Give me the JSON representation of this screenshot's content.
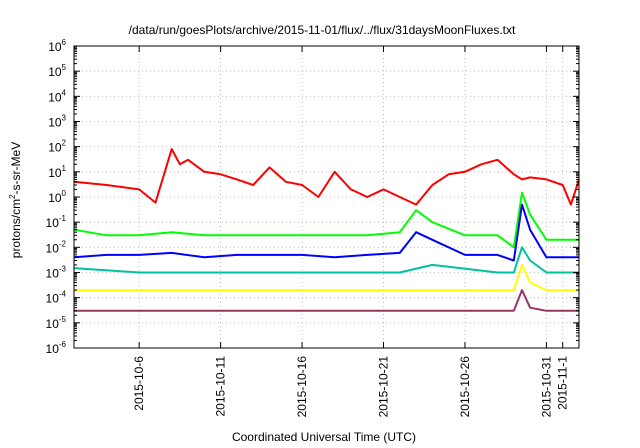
{
  "chart_data": {
    "type": "line",
    "title": "/data/run/goesPlots/archive/2015-11-01/flux/../flux/31daysMoonFluxes.txt",
    "xlabel": "Coordinated Universal Time (UTC)",
    "ylabel_base": "protons/cm",
    "ylabel_sup": "2",
    "ylabel_rest": "-s-sr-MeV",
    "yscale": "log",
    "ylim_exp": [
      -6,
      6
    ],
    "y_tick_exps": [
      -6,
      -5,
      -4,
      -3,
      -2,
      -1,
      0,
      1,
      2,
      3,
      4,
      5,
      6
    ],
    "y_tick_base": "10",
    "xlim": [
      "2015-10-02",
      "2015-11-02"
    ],
    "x_ticks": [
      "2015-10-6",
      "2015-10-11",
      "2015-10-16",
      "2015-10-21",
      "2015-10-26",
      "2015-10-31",
      "2015-11-1"
    ],
    "grid": true,
    "series": [
      {
        "color": "#ff0000",
        "x": [
          "2015-10-02",
          "2015-10-04",
          "2015-10-06",
          "2015-10-07",
          "2015-10-08",
          "2015-10-08T12",
          "2015-10-09",
          "2015-10-10",
          "2015-10-11",
          "2015-10-12",
          "2015-10-13",
          "2015-10-14",
          "2015-10-15",
          "2015-10-16",
          "2015-10-17",
          "2015-10-18",
          "2015-10-19",
          "2015-10-20",
          "2015-10-21",
          "2015-10-22",
          "2015-10-23",
          "2015-10-24",
          "2015-10-25",
          "2015-10-26",
          "2015-10-27",
          "2015-10-28",
          "2015-10-29",
          "2015-10-29T12",
          "2015-10-30",
          "2015-10-31",
          "2015-11-01",
          "2015-11-01T12",
          "2015-11-02"
        ],
        "y": [
          4,
          3,
          2,
          0.6,
          80,
          20,
          30,
          10,
          8,
          5,
          3,
          15,
          4,
          3,
          1,
          10,
          2,
          1,
          2,
          1,
          0.5,
          3,
          8,
          10,
          20,
          30,
          8,
          5,
          6,
          5,
          3,
          0.5,
          5
        ]
      },
      {
        "color": "#00ff00",
        "x": [
          "2015-10-02",
          "2015-10-04",
          "2015-10-06",
          "2015-10-08",
          "2015-10-10",
          "2015-10-12",
          "2015-10-14",
          "2015-10-16",
          "2015-10-18",
          "2015-10-20",
          "2015-10-22",
          "2015-10-23",
          "2015-10-24",
          "2015-10-26",
          "2015-10-28",
          "2015-10-29",
          "2015-10-29T12",
          "2015-10-30",
          "2015-10-31",
          "2015-11-01",
          "2015-11-02"
        ],
        "y": [
          0.05,
          0.03,
          0.03,
          0.04,
          0.03,
          0.03,
          0.03,
          0.03,
          0.03,
          0.03,
          0.04,
          0.3,
          0.1,
          0.03,
          0.03,
          0.01,
          1.5,
          0.2,
          0.02,
          0.02,
          0.02
        ]
      },
      {
        "color": "#0000ff",
        "x": [
          "2015-10-02",
          "2015-10-04",
          "2015-10-06",
          "2015-10-08",
          "2015-10-10",
          "2015-10-12",
          "2015-10-14",
          "2015-10-16",
          "2015-10-18",
          "2015-10-20",
          "2015-10-22",
          "2015-10-23",
          "2015-10-24",
          "2015-10-26",
          "2015-10-28",
          "2015-10-29",
          "2015-10-29T12",
          "2015-10-30",
          "2015-10-31",
          "2015-11-01",
          "2015-11-02"
        ],
        "y": [
          0.004,
          0.005,
          0.005,
          0.006,
          0.004,
          0.005,
          0.005,
          0.005,
          0.004,
          0.005,
          0.006,
          0.04,
          0.02,
          0.005,
          0.005,
          0.003,
          0.5,
          0.05,
          0.004,
          0.004,
          0.004
        ]
      },
      {
        "color": "#00c0a0",
        "x": [
          "2015-10-02",
          "2015-10-06",
          "2015-10-10",
          "2015-10-14",
          "2015-10-18",
          "2015-10-22",
          "2015-10-24",
          "2015-10-28",
          "2015-10-29",
          "2015-10-29T12",
          "2015-10-30",
          "2015-10-31",
          "2015-11-02"
        ],
        "y": [
          0.0015,
          0.001,
          0.001,
          0.001,
          0.001,
          0.001,
          0.002,
          0.001,
          0.001,
          0.01,
          0.003,
          0.001,
          0.001
        ]
      },
      {
        "color": "#ffff00",
        "x": [
          "2015-10-02",
          "2015-10-06",
          "2015-10-10",
          "2015-10-14",
          "2015-10-18",
          "2015-10-22",
          "2015-10-26",
          "2015-10-29",
          "2015-10-29T12",
          "2015-10-30",
          "2015-10-31",
          "2015-11-02"
        ],
        "y": [
          0.0002,
          0.0002,
          0.0002,
          0.0002,
          0.0002,
          0.0002,
          0.0002,
          0.0002,
          0.002,
          0.0004,
          0.0002,
          0.0002
        ]
      },
      {
        "color": "#993366",
        "x": [
          "2015-10-02",
          "2015-10-06",
          "2015-10-10",
          "2015-10-14",
          "2015-10-18",
          "2015-10-22",
          "2015-10-26",
          "2015-10-29",
          "2015-10-29T12",
          "2015-10-30",
          "2015-10-31",
          "2015-11-02"
        ],
        "y": [
          3e-05,
          3e-05,
          3e-05,
          3e-05,
          3e-05,
          3e-05,
          3e-05,
          3e-05,
          0.0002,
          4e-05,
          3e-05,
          3e-05
        ]
      }
    ]
  }
}
